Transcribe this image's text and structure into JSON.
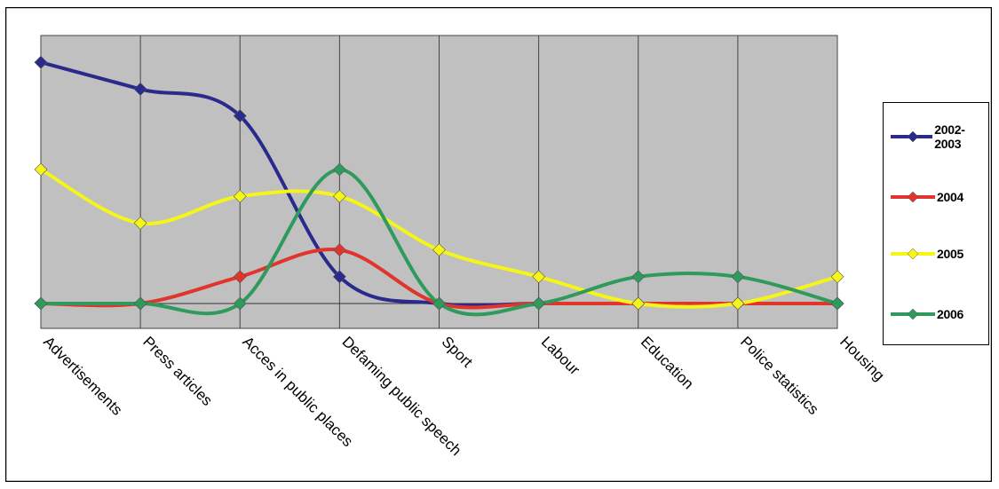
{
  "chart_data": {
    "type": "line",
    "categories": [
      "Advertisements",
      "Press articles",
      "Acces in public places",
      "Defaming public speech",
      "Sport",
      "Labour",
      "Education",
      "Police statistics",
      "Housing"
    ],
    "series": [
      {
        "name": "2002-2003",
        "color": "#2a2a8c",
        "marker": "diamond",
        "values": [
          9,
          8,
          7,
          1,
          0,
          0,
          0,
          0,
          0
        ]
      },
      {
        "name": "2004",
        "color": "#e0342c",
        "marker": "diamond",
        "values": [
          0,
          0,
          1,
          2,
          0,
          0,
          0,
          0,
          0
        ]
      },
      {
        "name": "2005",
        "color": "#f5f51a",
        "marker": "diamond",
        "values": [
          5,
          3,
          4,
          4,
          2,
          1,
          0,
          0,
          1
        ]
      },
      {
        "name": "2006",
        "color": "#2e9a5c",
        "marker": "diamond",
        "values": [
          0,
          0,
          0,
          5,
          0,
          0,
          1,
          1,
          0
        ]
      }
    ],
    "smooth": true,
    "plot_background": "#c0c0c0",
    "vertical_gridlines": true,
    "legend_position": "right",
    "title": "",
    "xlabel": "",
    "ylabel": ""
  }
}
